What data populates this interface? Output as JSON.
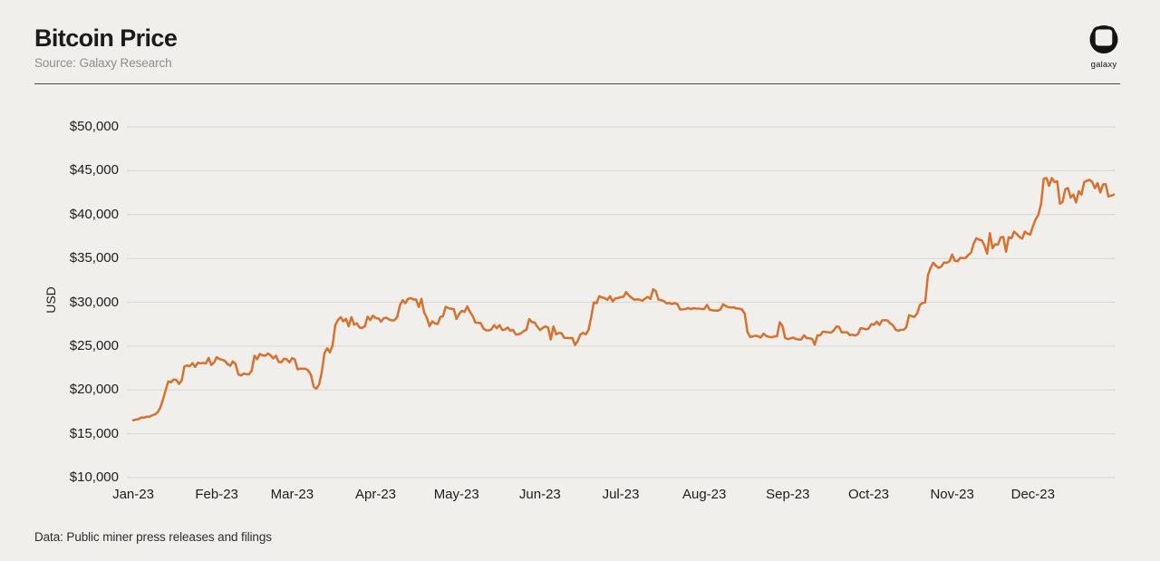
{
  "header": {
    "title": "Bitcoin Price",
    "source": "Source: Galaxy Research",
    "logo_text": "galaxy"
  },
  "footer": {
    "note": "Data: Public miner press releases and filings"
  },
  "colors": {
    "background": "#f0efec",
    "line": "#d8702e",
    "gridline": "#dcdbd8",
    "title_text": "#1b1b19",
    "muted_text": "#8e8d8a",
    "logo_black": "#141414"
  },
  "chart_data": {
    "type": "line",
    "title": "Bitcoin Price",
    "xlabel": "",
    "ylabel": "USD",
    "ylim": [
      10000,
      50000
    ],
    "grid": "horizontal-only",
    "legend": "none",
    "x_range_days": 365,
    "yticks": [
      {
        "label": "$50,000",
        "value": 50000
      },
      {
        "label": "$45,000",
        "value": 45000
      },
      {
        "label": "$40,000",
        "value": 40000
      },
      {
        "label": "$35,000",
        "value": 35000
      },
      {
        "label": "$30,000",
        "value": 30000
      },
      {
        "label": "$25,000",
        "value": 25000
      },
      {
        "label": "$20,000",
        "value": 20000
      },
      {
        "label": "$15,000",
        "value": 15000
      },
      {
        "label": "$10,000",
        "value": 10000
      }
    ],
    "xticks": [
      {
        "label": "Jan-23",
        "day": 0
      },
      {
        "label": "Feb-23",
        "day": 31
      },
      {
        "label": "Mar-23",
        "day": 59
      },
      {
        "label": "Apr-23",
        "day": 90
      },
      {
        "label": "May-23",
        "day": 120
      },
      {
        "label": "Jun-23",
        "day": 151
      },
      {
        "label": "Jul-23",
        "day": 181
      },
      {
        "label": "Aug-23",
        "day": 212
      },
      {
        "label": "Sep-23",
        "day": 243
      },
      {
        "label": "Oct-23",
        "day": 273
      },
      {
        "label": "Nov-23",
        "day": 304
      },
      {
        "label": "Dec-23",
        "day": 334
      }
    ],
    "series": [
      {
        "name": "Bitcoin Price (USD)",
        "start_date": "2023-01-01",
        "frequency": "daily",
        "values": [
          16540,
          16620,
          16670,
          16860,
          16840,
          16950,
          16940,
          17100,
          17190,
          17440,
          17940,
          18850,
          19930,
          20960,
          20880,
          21190,
          21140,
          20680,
          21090,
          22680,
          22790,
          22710,
          23060,
          22630,
          23110,
          23030,
          23080,
          23030,
          23640,
          22840,
          23130,
          23730,
          23520,
          23440,
          23330,
          22950,
          22760,
          23260,
          22940,
          21790,
          21650,
          21860,
          21790,
          21780,
          22200,
          23900,
          23500,
          24100,
          23950,
          23900,
          24150,
          23950,
          23600,
          23900,
          23190,
          23160,
          23560,
          23490,
          23140,
          23640,
          23460,
          22360,
          22430,
          22410,
          22410,
          22200,
          21700,
          20360,
          20150,
          20620,
          22040,
          24200,
          24750,
          24280,
          25060,
          27390,
          27970,
          28300,
          27820,
          28110,
          27250,
          28300,
          27450,
          27600,
          27120,
          27080,
          27270,
          28350,
          27980,
          28470,
          28180,
          28170,
          27790,
          28170,
          28240,
          28030,
          27920,
          27950,
          28330,
          29640,
          30230,
          29890,
          30380,
          30480,
          30310,
          30320,
          29450,
          30390,
          28820,
          28250,
          27270,
          27820,
          27590,
          27520,
          28310,
          28420,
          29480,
          29340,
          29250,
          29230,
          28090,
          28680,
          29030,
          28900,
          29530,
          28900,
          28440,
          27690,
          27650,
          27620,
          27000,
          26800,
          26780,
          26930,
          27400,
          27030,
          27400,
          26820,
          26890,
          27120,
          26750,
          26850,
          26330,
          26340,
          26480,
          26720,
          26870,
          28080,
          27740,
          27700,
          27220,
          26820,
          27070,
          27250,
          27120,
          25750,
          27240,
          26350,
          26500,
          26480,
          25940,
          25930,
          25900,
          25930,
          25120,
          25580,
          26330,
          26510,
          26340,
          26840,
          28310,
          29990,
          29890,
          30690,
          30550,
          30480,
          30270,
          30690,
          30080,
          30440,
          30480,
          30590,
          30620,
          31160,
          30780,
          30510,
          30290,
          30340,
          30290,
          30170,
          30420,
          30610,
          30380,
          31480,
          31270,
          30290,
          30230,
          30140,
          29860,
          29920,
          29800,
          29910,
          29790,
          29180,
          29180,
          29230,
          29350,
          29210,
          29320,
          29280,
          29280,
          29230,
          29230,
          29700,
          29150,
          29080,
          29040,
          29040,
          29180,
          29770,
          29560,
          29430,
          29400,
          29410,
          29280,
          29280,
          29170,
          28700,
          26620,
          26050,
          26100,
          26190,
          26120,
          25990,
          26430,
          26160,
          26050,
          26010,
          26090,
          26120,
          27720,
          27300,
          25930,
          25800,
          25870,
          25970,
          25820,
          25750,
          25750,
          26240,
          25900,
          25890,
          25830,
          25160,
          26230,
          26220,
          26640,
          26610,
          26570,
          26530,
          26770,
          27220,
          27210,
          26570,
          26580,
          26580,
          26250,
          26300,
          26210,
          26360,
          27030,
          27000,
          26910,
          27000,
          27510,
          27430,
          27800,
          27410,
          27930,
          27960,
          27920,
          27590,
          27390,
          26870,
          26750,
          26860,
          26860,
          27160,
          28520,
          28410,
          28330,
          28720,
          29680,
          29920,
          29990,
          33080,
          33910,
          34500,
          34160,
          33910,
          34090,
          34540,
          34500,
          34670,
          35440,
          34730,
          34670,
          35060,
          35020,
          35050,
          35400,
          35640,
          36700,
          37310,
          37130,
          37070,
          36460,
          35550,
          37880,
          36160,
          36620,
          36570,
          37390,
          37450,
          35760,
          37410,
          37290,
          38060,
          37780,
          37450,
          37250,
          38060,
          37820,
          37720,
          38690,
          39460,
          39970,
          41190,
          44080,
          44170,
          43270,
          44170,
          43710,
          43790,
          41240,
          41450,
          42890,
          43020,
          41940,
          42280,
          41370,
          42660,
          42270,
          43670,
          43860,
          43960,
          43710,
          43010,
          43580,
          42520,
          43440,
          43460,
          42070,
          42150,
          42280
        ]
      }
    ]
  }
}
